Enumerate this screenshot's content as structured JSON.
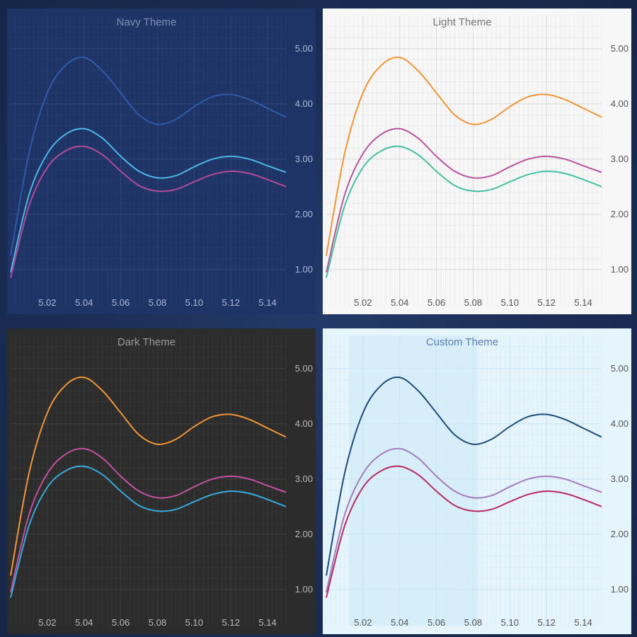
{
  "chart_data": [
    {
      "type": "line",
      "title": "Navy Theme",
      "x": [
        5.0,
        5.01,
        5.02,
        5.03,
        5.04,
        5.05,
        5.06,
        5.07,
        5.08,
        5.09,
        5.1,
        5.11,
        5.12,
        5.13,
        5.14,
        5.15
      ],
      "series": [
        {
          "values": [
            1.25,
            3.1,
            4.2,
            4.7,
            4.84,
            4.6,
            4.2,
            3.8,
            3.63,
            3.72,
            3.95,
            4.13,
            4.17,
            4.08,
            3.92,
            3.76
          ]
        },
        {
          "values": [
            0.95,
            2.35,
            3.1,
            3.45,
            3.55,
            3.38,
            3.05,
            2.78,
            2.66,
            2.7,
            2.86,
            3.0,
            3.05,
            3.0,
            2.88,
            2.76
          ]
        },
        {
          "values": [
            0.85,
            2.15,
            2.85,
            3.15,
            3.23,
            3.08,
            2.78,
            2.52,
            2.42,
            2.45,
            2.59,
            2.72,
            2.78,
            2.74,
            2.63,
            2.5
          ]
        }
      ],
      "xticks": [
        "5.02",
        "5.04",
        "5.06",
        "5.08",
        "5.10",
        "5.12",
        "5.14"
      ],
      "yticks": [
        "1.00",
        "2.00",
        "3.00",
        "4.00",
        "5.00"
      ],
      "xlim": [
        5.0,
        5.15
      ],
      "ylim": [
        0.6,
        5.6
      ],
      "grid": true,
      "colors": {
        "background": "#1f3466",
        "title": "#7d8fb6",
        "tick": "#a9b8d8",
        "grid": "#2f4678",
        "grid_minor": "#26396b",
        "series": [
          "#2e5aa8",
          "#4cb6e6",
          "#b04b9a"
        ]
      }
    },
    {
      "type": "line",
      "title": "Light Theme",
      "x": [
        5.0,
        5.01,
        5.02,
        5.03,
        5.04,
        5.05,
        5.06,
        5.07,
        5.08,
        5.09,
        5.1,
        5.11,
        5.12,
        5.13,
        5.14,
        5.15
      ],
      "series": [
        {
          "values": [
            1.25,
            3.1,
            4.2,
            4.7,
            4.84,
            4.6,
            4.2,
            3.8,
            3.63,
            3.72,
            3.95,
            4.13,
            4.17,
            4.08,
            3.92,
            3.76
          ]
        },
        {
          "values": [
            0.95,
            2.35,
            3.1,
            3.45,
            3.55,
            3.38,
            3.05,
            2.78,
            2.66,
            2.7,
            2.86,
            3.0,
            3.05,
            3.0,
            2.88,
            2.76
          ]
        },
        {
          "values": [
            0.85,
            2.15,
            2.85,
            3.15,
            3.23,
            3.08,
            2.78,
            2.52,
            2.42,
            2.45,
            2.59,
            2.72,
            2.78,
            2.74,
            2.63,
            2.5
          ]
        }
      ],
      "xticks": [
        "5.02",
        "5.04",
        "5.06",
        "5.08",
        "5.10",
        "5.12",
        "5.14"
      ],
      "yticks": [
        "1.00",
        "2.00",
        "3.00",
        "4.00",
        "5.00"
      ],
      "xlim": [
        5.0,
        5.15
      ],
      "ylim": [
        0.6,
        5.6
      ],
      "grid": true,
      "colors": {
        "background": "#f7f7f7",
        "title": "#777777",
        "tick": "#555555",
        "grid": "#dcdcdc",
        "grid_minor": "#ececec",
        "series": [
          "#f19537",
          "#b9549e",
          "#45c1a0"
        ]
      }
    },
    {
      "type": "line",
      "title": "Dark Theme",
      "x": [
        5.0,
        5.01,
        5.02,
        5.03,
        5.04,
        5.05,
        5.06,
        5.07,
        5.08,
        5.09,
        5.1,
        5.11,
        5.12,
        5.13,
        5.14,
        5.15
      ],
      "series": [
        {
          "values": [
            1.25,
            3.1,
            4.2,
            4.7,
            4.84,
            4.6,
            4.2,
            3.8,
            3.63,
            3.72,
            3.95,
            4.13,
            4.17,
            4.08,
            3.92,
            3.76
          ]
        },
        {
          "values": [
            0.95,
            2.35,
            3.1,
            3.45,
            3.55,
            3.38,
            3.05,
            2.78,
            2.66,
            2.7,
            2.86,
            3.0,
            3.05,
            3.0,
            2.88,
            2.76
          ]
        },
        {
          "values": [
            0.85,
            2.15,
            2.85,
            3.15,
            3.23,
            3.08,
            2.78,
            2.52,
            2.42,
            2.45,
            2.59,
            2.72,
            2.78,
            2.74,
            2.63,
            2.5
          ]
        }
      ],
      "xticks": [
        "5.02",
        "5.04",
        "5.06",
        "5.08",
        "5.10",
        "5.12",
        "5.14"
      ],
      "yticks": [
        "1.00",
        "2.00",
        "3.00",
        "4.00",
        "5.00"
      ],
      "xlim": [
        5.0,
        5.15
      ],
      "ylim": [
        0.6,
        5.6
      ],
      "grid": true,
      "colors": {
        "background": "#2c2c2c",
        "title": "#9a9a9a",
        "tick": "#b8b8b8",
        "grid": "#3e3e3e",
        "grid_minor": "#353535",
        "series": [
          "#f19537",
          "#c2519f",
          "#38a9dc"
        ]
      }
    },
    {
      "type": "line",
      "title": "Custom Theme",
      "x": [
        5.0,
        5.01,
        5.02,
        5.03,
        5.04,
        5.05,
        5.06,
        5.07,
        5.08,
        5.09,
        5.1,
        5.11,
        5.12,
        5.13,
        5.14,
        5.15
      ],
      "series": [
        {
          "values": [
            1.25,
            3.1,
            4.2,
            4.7,
            4.84,
            4.6,
            4.2,
            3.8,
            3.63,
            3.72,
            3.95,
            4.13,
            4.17,
            4.08,
            3.92,
            3.76
          ]
        },
        {
          "values": [
            0.95,
            2.35,
            3.1,
            3.45,
            3.55,
            3.38,
            3.05,
            2.78,
            2.66,
            2.7,
            2.86,
            3.0,
            3.05,
            3.0,
            2.88,
            2.76
          ]
        },
        {
          "values": [
            0.85,
            2.15,
            2.85,
            3.15,
            3.23,
            3.08,
            2.78,
            2.52,
            2.42,
            2.45,
            2.59,
            2.72,
            2.78,
            2.74,
            2.63,
            2.5
          ]
        }
      ],
      "xticks": [
        "5.02",
        "5.04",
        "5.06",
        "5.08",
        "5.10",
        "5.12",
        "5.14"
      ],
      "yticks": [
        "1.00",
        "2.00",
        "3.00",
        "4.00",
        "5.00"
      ],
      "xlim": [
        5.0,
        5.15
      ],
      "ylim": [
        0.6,
        5.6
      ],
      "grid": true,
      "colors": {
        "background": "#e6f5fc",
        "band": "#d6eef9",
        "title": "#5d7ea8",
        "tick": "#555555",
        "grid": "#c9e4f1",
        "grid_minor": "#dbeef8",
        "series": [
          "#1e4b7a",
          "#a27cbd",
          "#b82b62"
        ]
      }
    }
  ]
}
